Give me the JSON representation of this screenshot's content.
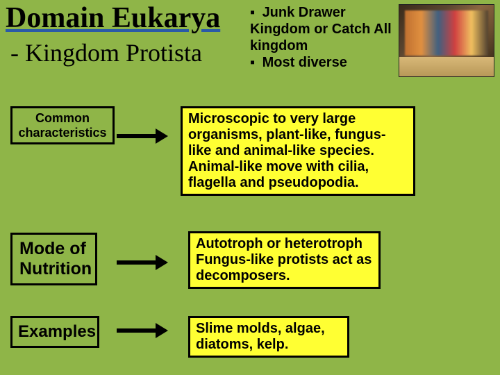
{
  "title": "Domain Eukarya",
  "subtitle": " - Kingdom Protista",
  "notes": {
    "line1": "Junk Drawer Kingdom or Catch All kingdom",
    "line2": "Most diverse"
  },
  "rows": [
    {
      "label": "Common characteristics",
      "content": "Microscopic to very large organisms, plant-like, fungus-like and animal-like species. Animal-like move with cilia, flagella and pseudopodia."
    },
    {
      "label": "Mode of Nutrition",
      "content": "Autotroph or heterotroph Fungus-like protists act as decomposers."
    },
    {
      "label": "Examples",
      "content": "Slime molds, algae, diatoms, kelp."
    }
  ],
  "colors": {
    "background": "#8fb548",
    "highlight": "#ffff33",
    "border": "#000000",
    "underline": "#2a5aa8"
  }
}
